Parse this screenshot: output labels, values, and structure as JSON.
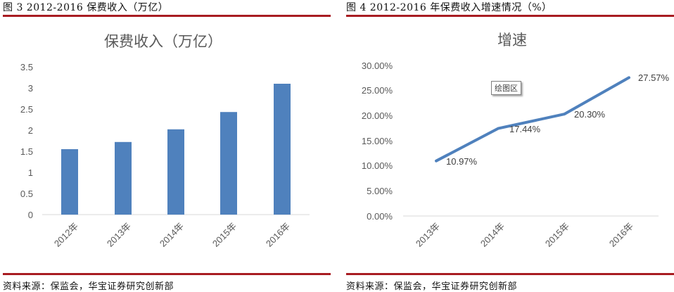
{
  "figure3": {
    "caption": "图 3   2012-2016 保费收入（万亿）",
    "source": "资料来源：保监会，华宝证券研究创新部"
  },
  "figure4": {
    "caption": "图 4   2012-2016 年保费收入增速情况（%）",
    "source": "资料来源：保监会，华宝证券研究创新部",
    "plot_area_tag": "绘图区"
  },
  "colors": {
    "series": "#4f81bd",
    "rule": "#a81c22",
    "axis_text": "#595959",
    "gridline": "#d9d9d9"
  },
  "chart_data": [
    {
      "type": "bar",
      "title": "保费收入（万亿）",
      "categories": [
        "2012年",
        "2013年",
        "2014年",
        "2015年",
        "2016年"
      ],
      "values": [
        1.55,
        1.72,
        2.02,
        2.43,
        3.1
      ],
      "xlabel": "",
      "ylabel": "",
      "ylim": [
        0,
        3.5
      ],
      "yticks": [
        "0",
        "0.5",
        "1",
        "1.5",
        "2",
        "2.5",
        "3",
        "3.5"
      ],
      "grid": false,
      "legend": null
    },
    {
      "type": "line",
      "title": "增速",
      "categories": [
        "2013年",
        "2014年",
        "2015年",
        "2016年"
      ],
      "values": [
        10.97,
        17.44,
        20.3,
        27.57
      ],
      "data_labels": [
        "10.97%",
        "17.44%",
        "20.30%",
        "27.57%"
      ],
      "xlabel": "",
      "ylabel": "",
      "ylim": [
        0,
        30
      ],
      "yticks": [
        "0.00%",
        "5.00%",
        "10.00%",
        "15.00%",
        "20.00%",
        "25.00%",
        "30.00%"
      ],
      "grid": false,
      "legend": null
    }
  ]
}
